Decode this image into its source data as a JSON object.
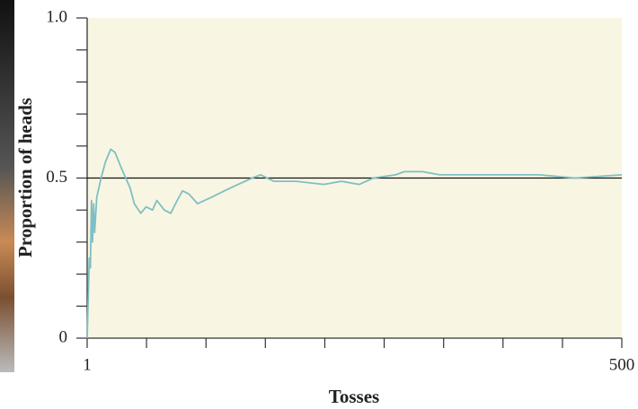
{
  "chart_data": {
    "type": "line",
    "xlabel": "Tosses",
    "ylabel": "Proportion of heads",
    "x": [
      1,
      3,
      4,
      5,
      6,
      7,
      8,
      10,
      12,
      14,
      18,
      23,
      27,
      33,
      41,
      45,
      51,
      56,
      62,
      66,
      73,
      79,
      85,
      90,
      96,
      104,
      117,
      129,
      142,
      155,
      163,
      175,
      196,
      222,
      238,
      255,
      268,
      289,
      297,
      314,
      330,
      356,
      389,
      423,
      456,
      500
    ],
    "values": [
      0,
      0.25,
      0.22,
      0.43,
      0.3,
      0.42,
      0.33,
      0.44,
      0.47,
      0.5,
      0.55,
      0.59,
      0.58,
      0.53,
      0.47,
      0.42,
      0.39,
      0.41,
      0.4,
      0.43,
      0.4,
      0.39,
      0.43,
      0.46,
      0.45,
      0.42,
      0.44,
      0.46,
      0.48,
      0.5,
      0.51,
      0.49,
      0.49,
      0.48,
      0.49,
      0.48,
      0.5,
      0.51,
      0.52,
      0.52,
      0.51,
      0.51,
      0.51,
      0.51,
      0.5,
      0.51
    ],
    "color": "#7fbfc4",
    "background": "#f8f6e2",
    "reference_line": 0.5,
    "xlim": [
      1,
      500
    ],
    "xticks": [
      1,
      500
    ],
    "xminorticks": [
      56.4,
      111.9,
      167.3,
      222.8,
      278.2,
      333.7,
      389.1,
      444.6
    ],
    "ylim": [
      0,
      1
    ],
    "yticks": [
      0,
      0.5,
      {
        "value": 1,
        "label": "1.0"
      }
    ],
    "yminorticks": [
      0.1,
      0.2,
      0.3,
      0.4,
      0.6,
      0.7,
      0.8,
      0.9
    ]
  }
}
